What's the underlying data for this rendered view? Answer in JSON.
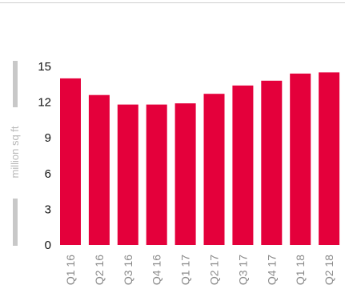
{
  "chart_data": {
    "type": "bar",
    "title": "",
    "xlabel": "",
    "ylabel": "million sq ft",
    "categories": [
      "Q1 16",
      "Q2 16",
      "Q3 16",
      "Q4 16",
      "Q1 17",
      "Q2 17",
      "Q3 17",
      "Q4 17",
      "Q1 18",
      "Q2 18"
    ],
    "values": [
      14.0,
      12.6,
      11.8,
      11.8,
      11.9,
      12.7,
      13.4,
      13.8,
      14.4,
      14.5
    ],
    "ylim": [
      0,
      15
    ],
    "yticks": [
      0,
      3,
      6,
      9,
      12,
      15
    ],
    "grid": false,
    "legend": "none",
    "bar_color": "#E4003B",
    "axis_accent_color": "#C8C8C8"
  }
}
